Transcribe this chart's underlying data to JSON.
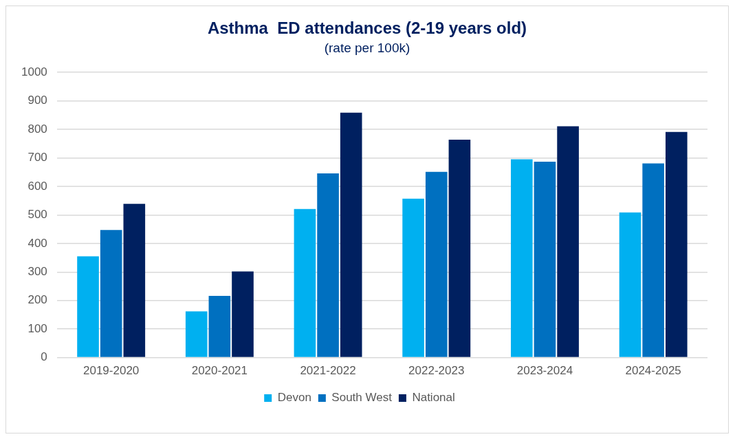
{
  "chart_data": {
    "type": "bar",
    "title": "Asthma  ED attendances (2-19 years old)",
    "subtitle": "(rate per 100k)",
    "categories": [
      "2019-2020",
      "2020-2021",
      "2021-2022",
      "2022-2023",
      "2023-2024",
      "2024-2025"
    ],
    "series": [
      {
        "name": "Devon",
        "color": "#00b0f0",
        "values": [
          355,
          162,
          521,
          557,
          695,
          509
        ]
      },
      {
        "name": "South West",
        "color": "#0070c0",
        "values": [
          447,
          216,
          646,
          651,
          687,
          681
        ]
      },
      {
        "name": "National",
        "color": "#002060",
        "values": [
          539,
          302,
          859,
          764,
          811,
          791
        ]
      }
    ],
    "ylim": [
      0,
      1000
    ],
    "yticks": [
      0,
      100,
      200,
      300,
      400,
      500,
      600,
      700,
      800,
      900,
      1000
    ],
    "grid": "y",
    "legend": "bottom"
  }
}
